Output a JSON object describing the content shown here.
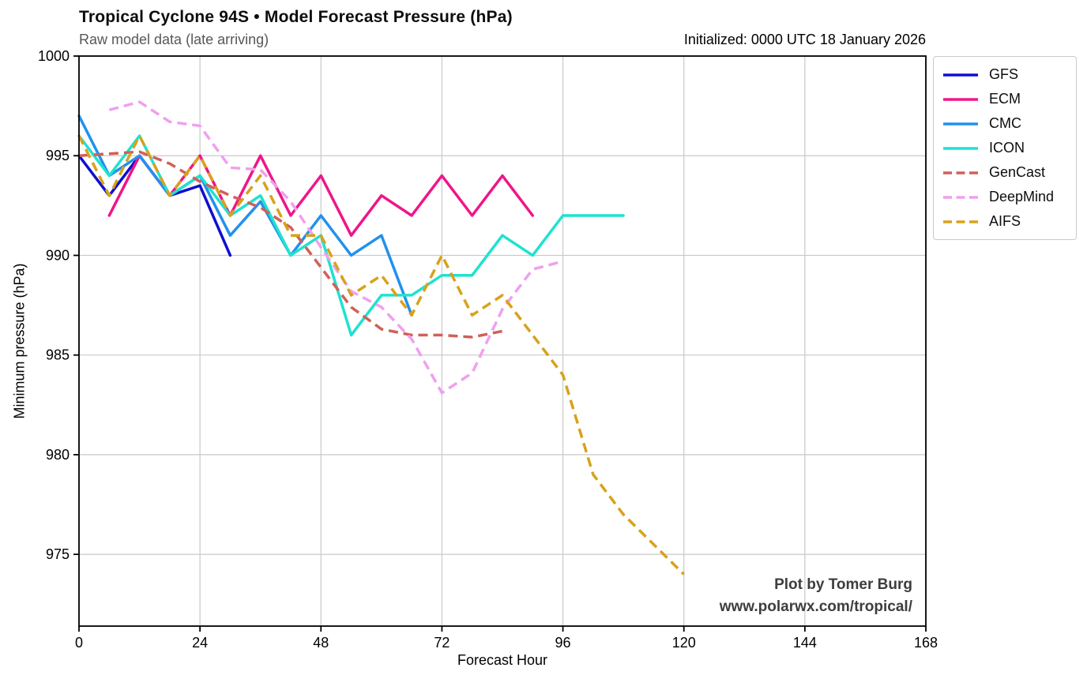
{
  "chart_data": {
    "type": "line",
    "title": "Tropical Cyclone 94S • Model Forecast Pressure (hPa)",
    "subtitle": "Raw model data (late arriving)",
    "initialized": "Initialized: 0000 UTC 18 January 2026",
    "xlabel": "Forecast Hour",
    "ylabel": "Minimum pressure (hPa)",
    "x_ticks": [
      0,
      24,
      48,
      72,
      96,
      120,
      144,
      168
    ],
    "y_ticks": [
      1000,
      995,
      990,
      985,
      980,
      975
    ],
    "xlim": [
      0,
      168
    ],
    "ylim": [
      971.4,
      1000
    ],
    "grid": true,
    "grid_color": "#c9c9c9",
    "legend_position": "outside-upper-right",
    "series": [
      {
        "name": "GFS",
        "color": "#0f0fd0",
        "style": "solid",
        "hours": [
          0,
          6,
          12,
          18,
          24,
          30
        ],
        "values": [
          995,
          993,
          995,
          993,
          993.5,
          990
        ]
      },
      {
        "name": "ECM",
        "color": "#f01589",
        "style": "solid",
        "hours": [
          6,
          12,
          18,
          24,
          30,
          36,
          42,
          48,
          54,
          60,
          66,
          72,
          78,
          84,
          90
        ],
        "values": [
          992,
          995,
          993,
          995,
          992,
          995,
          992,
          994,
          991,
          993,
          992,
          994,
          992,
          994,
          992
        ]
      },
      {
        "name": "CMC",
        "color": "#2191ed",
        "style": "solid",
        "hours": [
          0,
          6,
          12,
          18,
          24,
          30,
          36,
          42,
          48,
          54,
          60,
          66
        ],
        "values": [
          997,
          994,
          995,
          993,
          994,
          991,
          992.7,
          990,
          992,
          990,
          991,
          987
        ]
      },
      {
        "name": "ICON",
        "color": "#1fe2d0",
        "style": "solid",
        "hours": [
          0,
          6,
          12,
          18,
          24,
          30,
          36,
          42,
          48,
          54,
          60,
          66,
          72,
          78,
          84,
          90,
          96,
          102,
          108
        ],
        "values": [
          996,
          994,
          996,
          993,
          994,
          992,
          993,
          990,
          991,
          986,
          988,
          988,
          989,
          989,
          991,
          990,
          992,
          992,
          992
        ]
      },
      {
        "name": "GenCast",
        "color": "#cf6159",
        "style": "dashed",
        "hours": [
          0,
          6,
          12,
          18,
          24,
          30,
          36,
          42,
          48,
          54,
          60,
          66,
          72,
          78,
          84
        ],
        "values": [
          995,
          995.1,
          995.2,
          994.6,
          993.7,
          993,
          992.4,
          991.4,
          989.4,
          987.4,
          986.3,
          986,
          986,
          985.9,
          986.2
        ]
      },
      {
        "name": "DeepMind",
        "color": "#efa0ef",
        "style": "dashed",
        "hours": [
          6,
          12,
          18,
          24,
          30,
          36,
          42,
          48,
          54,
          60,
          66,
          72,
          78,
          84,
          90,
          96
        ],
        "values": [
          997.3,
          997.7,
          996.7,
          996.5,
          994.4,
          994.3,
          992.7,
          990.4,
          988.2,
          987.4,
          985.8,
          983.1,
          984.1,
          987.3,
          989.3,
          989.7
        ]
      },
      {
        "name": "AIFS",
        "color": "#d7a21c",
        "style": "dashed",
        "hours": [
          0,
          6,
          12,
          18,
          24,
          30,
          36,
          42,
          48,
          54,
          60,
          66,
          72,
          78,
          84,
          90,
          96,
          102,
          108,
          114,
          120
        ],
        "values": [
          996,
          993,
          996,
          993,
          995,
          992,
          994,
          991,
          991,
          988,
          989,
          987,
          990,
          987,
          988,
          986,
          984,
          979,
          977,
          975.5,
          974
        ]
      }
    ]
  },
  "attribution": {
    "line1": "Plot by Tomer Burg",
    "line2": "www.polarwx.com/tropical/"
  }
}
